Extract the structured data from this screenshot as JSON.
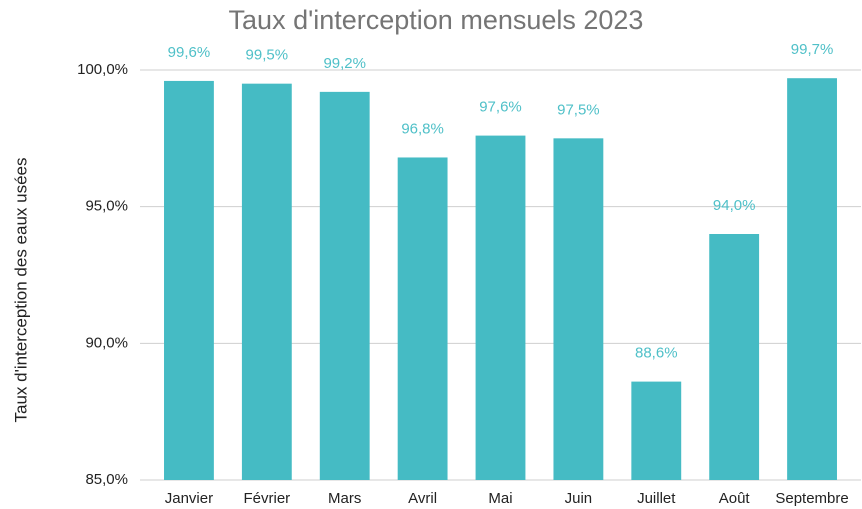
{
  "chart_data": {
    "type": "bar",
    "title": "Taux d'interception mensuels 2023",
    "y_label": "Taux d'interception des eaux usées",
    "categories": [
      "Janvier",
      "Février",
      "Mars",
      "Avril",
      "Mai",
      "Juin",
      "Juillet",
      "Août",
      "Septembre"
    ],
    "values": [
      99.6,
      99.5,
      99.2,
      96.8,
      97.6,
      97.5,
      88.6,
      94.0,
      99.7
    ],
    "value_labels": [
      "99,6%",
      "99,5%",
      "99,2%",
      "96,8%",
      "97,6%",
      "97,5%",
      "88,6%",
      "94,0%",
      "99,7%"
    ],
    "color": "#45bbc4",
    "ylim": [
      85,
      100
    ],
    "yticks": [
      {
        "value": 85,
        "label": "85,0%"
      },
      {
        "value": 90,
        "label": "90,0%"
      },
      {
        "value": 95,
        "label": "95,0%"
      },
      {
        "value": 100,
        "label": "100,0%"
      }
    ],
    "grid": true
  }
}
